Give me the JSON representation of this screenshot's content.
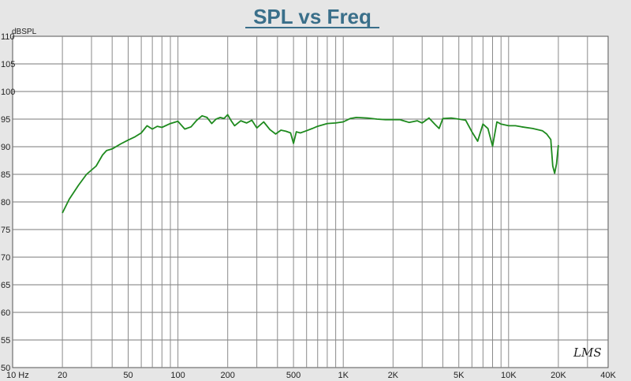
{
  "chart_data": {
    "type": "line",
    "title": "SPL vs Freq",
    "ylabel": "dBSPL",
    "xlabel": "",
    "x_scale": "log",
    "xlim": [
      10,
      40000
    ],
    "ylim": [
      50,
      110
    ],
    "y_ticks": [
      110,
      105,
      100,
      95,
      90,
      85,
      80,
      75,
      70,
      65,
      60,
      55,
      50
    ],
    "x_ticks": [
      {
        "value": 10,
        "label": "10 Hz"
      },
      {
        "value": 20,
        "label": "20"
      },
      {
        "value": 50,
        "label": "50"
      },
      {
        "value": 100,
        "label": "100"
      },
      {
        "value": 200,
        "label": "200"
      },
      {
        "value": 500,
        "label": "500"
      },
      {
        "value": 1000,
        "label": "1K"
      },
      {
        "value": 2000,
        "label": "2K"
      },
      {
        "value": 5000,
        "label": "5K"
      },
      {
        "value": 10000,
        "label": "10K"
      },
      {
        "value": 20000,
        "label": "20K"
      },
      {
        "value": 40000,
        "label": "40K"
      }
    ],
    "grid": true,
    "watermark": "LMS",
    "series": [
      {
        "color": "#1e8a1e",
        "x": [
          20,
          22,
          25,
          28,
          32,
          35,
          37,
          40,
          45,
          50,
          55,
          60,
          65,
          70,
          75,
          80,
          90,
          100,
          110,
          120,
          130,
          140,
          150,
          160,
          170,
          180,
          190,
          200,
          210,
          220,
          240,
          260,
          280,
          300,
          330,
          360,
          390,
          420,
          450,
          480,
          500,
          520,
          550,
          600,
          650,
          700,
          800,
          900,
          1000,
          1100,
          1200,
          1400,
          1600,
          1800,
          2000,
          2200,
          2500,
          2800,
          3000,
          3300,
          3600,
          3800,
          4000,
          4500,
          5000,
          5500,
          6000,
          6500,
          7000,
          7500,
          8000,
          8500,
          9000,
          10000,
          11000,
          12000,
          14000,
          16000,
          17000,
          18000,
          18500,
          19000,
          19500,
          20000
        ],
        "y": [
          78,
          80.5,
          83,
          85,
          86.5,
          88.5,
          89.3,
          89.6,
          90.5,
          91.2,
          91.8,
          92.5,
          93.8,
          93.2,
          93.7,
          93.5,
          94.2,
          94.6,
          93.2,
          93.6,
          94.8,
          95.6,
          95.3,
          94.2,
          95,
          95.3,
          95.1,
          95.8,
          94.7,
          93.8,
          94.7,
          94.3,
          94.8,
          93.4,
          94.5,
          93.1,
          92.3,
          93,
          92.8,
          92.5,
          90.6,
          92.7,
          92.5,
          92.9,
          93.3,
          93.7,
          94.2,
          94.3,
          94.5,
          95.1,
          95.3,
          95.2,
          95,
          94.9,
          94.9,
          94.9,
          94.4,
          94.7,
          94.3,
          95.2,
          94,
          93.3,
          95.1,
          95.2,
          95,
          94.8,
          92.7,
          91,
          94.1,
          93.3,
          90.1,
          94.5,
          94.1,
          93.8,
          93.8,
          93.6,
          93.3,
          92.9,
          92.3,
          91.3,
          86.5,
          85.2,
          86.9,
          90.3
        ]
      }
    ]
  }
}
